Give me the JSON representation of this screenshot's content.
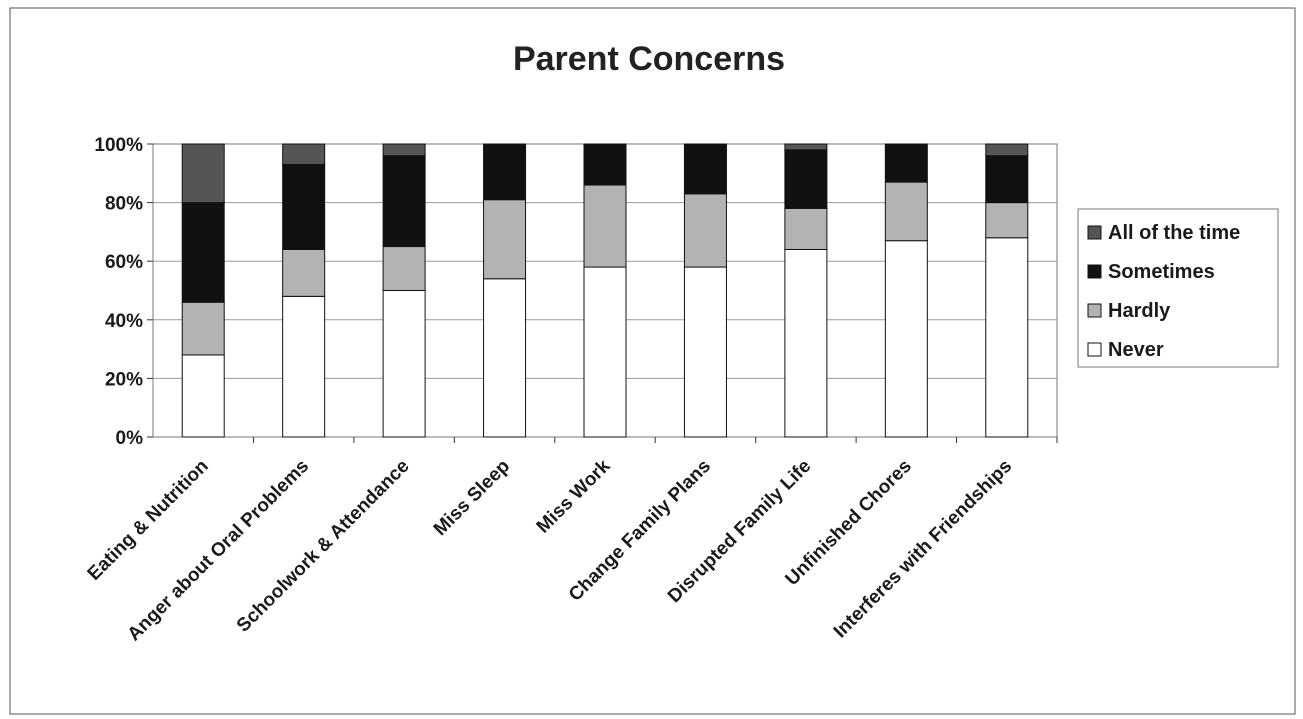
{
  "chart_data": {
    "type": "bar",
    "stacked": true,
    "percent": true,
    "title": "Parent Concerns",
    "xlabel": "",
    "ylabel": "",
    "ylim": [
      0,
      100
    ],
    "yticks": [
      "0%",
      "20%",
      "40%",
      "60%",
      "80%",
      "100%"
    ],
    "grid": true,
    "legend": "right",
    "categories": [
      "Eating & Nutrition",
      "Anger about Oral Problems",
      "Schoolwork & Attendance",
      "Miss Sleep",
      "Miss Work",
      "Change Family Plans",
      "Disrupted Family Life",
      "Unfinished Chores",
      "Interferes with Friendships"
    ],
    "series": [
      {
        "name": "Never",
        "color": "#ffffff",
        "values": [
          28,
          48,
          50,
          54,
          58,
          58,
          64,
          67,
          68
        ]
      },
      {
        "name": "Hardly",
        "color": "#b3b3b3",
        "values": [
          18,
          16,
          15,
          27,
          28,
          25,
          14,
          20,
          12
        ]
      },
      {
        "name": "Sometimes",
        "color": "#111111",
        "values": [
          34,
          29,
          31,
          19,
          14,
          17,
          20,
          13,
          16
        ]
      },
      {
        "name": "All of the time",
        "color": "#555555",
        "values": [
          20,
          7,
          4,
          0,
          0,
          0,
          2,
          0,
          4
        ]
      }
    ],
    "legend_order": [
      "All of the time",
      "Sometimes",
      "Hardly",
      "Never"
    ]
  }
}
